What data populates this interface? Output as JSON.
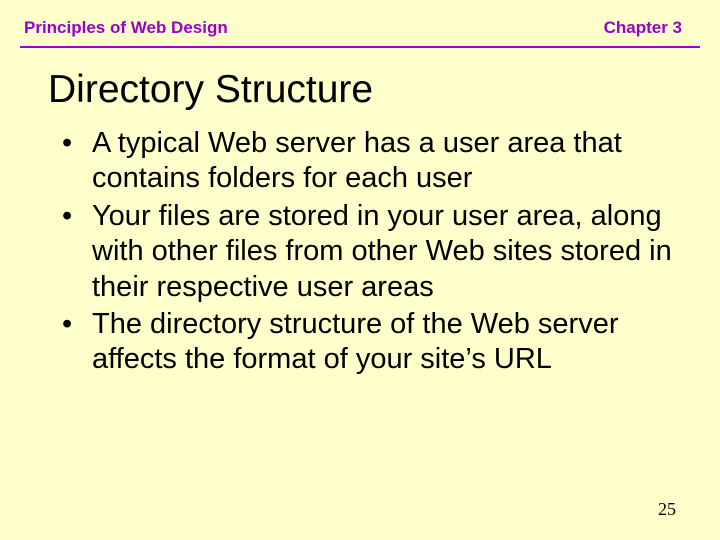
{
  "header": {
    "left": "Principles of Web Design",
    "right": "Chapter 3"
  },
  "colors": {
    "background": "#ffffcc",
    "header_text": "#9900cc",
    "divider": "#9900cc",
    "title_text": "#000000",
    "body_text": "#000000"
  },
  "typography": {
    "header_fontsize": 17,
    "header_weight": "bold",
    "title_fontsize": 39,
    "title_weight": "normal",
    "bullet_fontsize": 29,
    "pagenum_fontsize": 18
  },
  "title": "Directory Structure",
  "bullets": [
    "A typical Web server has a user area that contains folders for each user",
    "Your files are stored in your user area, along with other files from other Web sites stored in their respective user areas",
    "The directory structure of the Web server affects the format of your site’s URL"
  ],
  "page_number": "25"
}
